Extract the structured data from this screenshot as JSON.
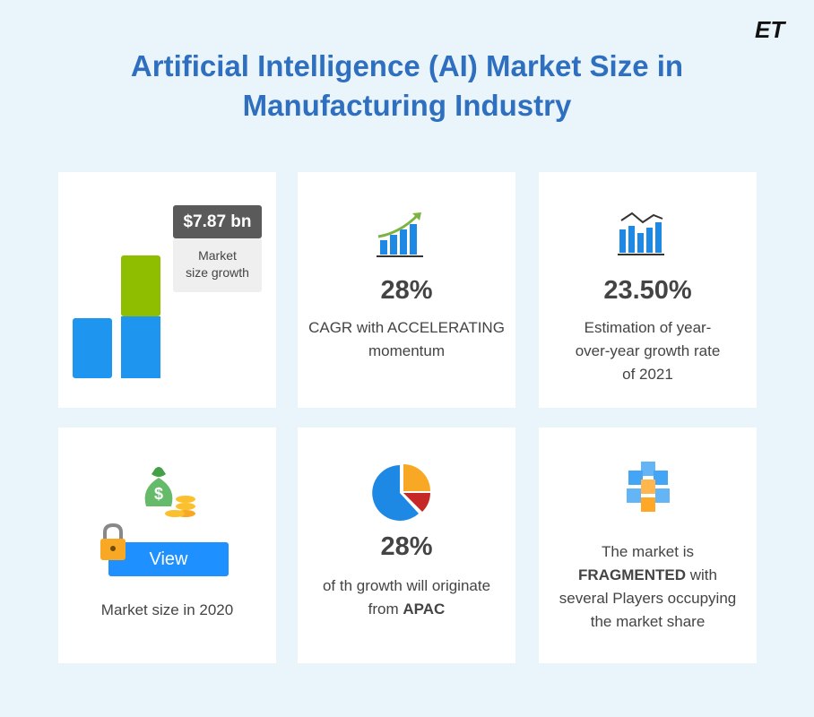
{
  "header": {
    "logo": "ET",
    "title": [
      "Artificial Intelligence (AI) Market Size in",
      "Manufacturing Industry"
    ]
  },
  "cards": [
    {
      "badge": "$7.87 bn",
      "caption": [
        "Market",
        "size growth"
      ]
    },
    {
      "stat": "28%",
      "text": [
        "CAGR with ACCELERATING",
        "momentum"
      ]
    },
    {
      "stat": "23.50%",
      "text": [
        "Estimation of  year-",
        "over-year growth rate",
        "of 2021"
      ]
    },
    {
      "button": "View",
      "text": [
        "Market size in 2020"
      ]
    },
    {
      "stat": "28%",
      "text": [
        "of th growth will originate",
        "from "
      ],
      "bold": "APAC"
    },
    {
      "text": [
        "The market is"
      ],
      "bold": "FRAGMENTED",
      "text2": [
        " with",
        "several Players occupying",
        "the market share"
      ]
    }
  ]
}
